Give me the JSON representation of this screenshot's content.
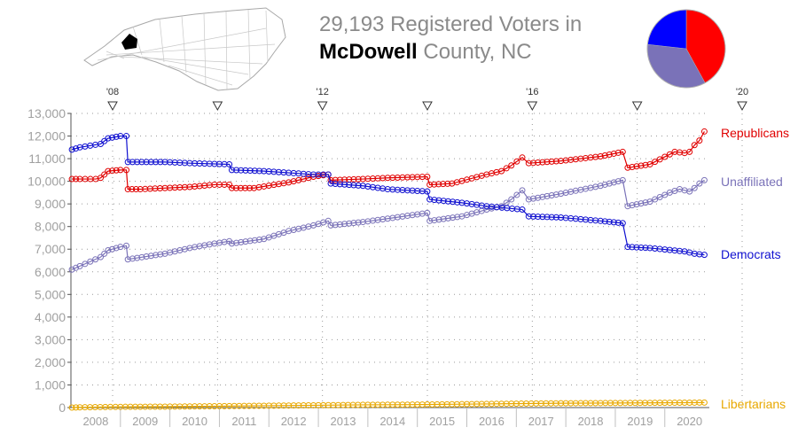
{
  "header": {
    "title_line1": "29,193 Registered Voters in",
    "county": "McDowell",
    "title_line2_rest": " County, NC"
  },
  "colors": {
    "republicans": "#e00000",
    "democrats": "#1010d0",
    "unaffiliated": "#7a72b8",
    "libertarians": "#e8a800",
    "grid": "#9a9a9a",
    "axis_text": "#a0a0a0"
  },
  "pie": {
    "slices": [
      {
        "name": "Republicans",
        "value": 12200,
        "color": "#ff0000"
      },
      {
        "name": "Unaffiliated",
        "value": 10100,
        "color": "#7a72b8"
      },
      {
        "name": "Democrats",
        "value": 6750,
        "color": "#0000ff"
      }
    ]
  },
  "map_icon": "north-carolina-county-map-icon",
  "chart_data": {
    "type": "line",
    "ylim": [
      0,
      13000
    ],
    "y_ticks": [
      0,
      1000,
      2000,
      3000,
      4000,
      5000,
      6000,
      7000,
      8000,
      9000,
      10000,
      11000,
      12000,
      13000
    ],
    "y_tick_labels": [
      "0",
      "1,000",
      "2,000",
      "3,000",
      "4,000",
      "5,000",
      "6,000",
      "7,000",
      "8,000",
      "9,000",
      "10,000",
      "11,000",
      "12,000",
      "13,000"
    ],
    "xlim": [
      2007.6,
      2020.5
    ],
    "x_year_labels": [
      "2008",
      "2009",
      "2010",
      "2011",
      "2012",
      "2013",
      "2014",
      "2015",
      "2016",
      "2017",
      "2018",
      "2019",
      "2020"
    ],
    "election_markers": [
      {
        "x": 2008.85,
        "label": "'08"
      },
      {
        "x": 2010.85,
        "label": ""
      },
      {
        "x": 2012.85,
        "label": "'12"
      },
      {
        "x": 2014.85,
        "label": ""
      },
      {
        "x": 2016.85,
        "label": "'16"
      },
      {
        "x": 2018.85,
        "label": ""
      },
      {
        "x": 2020.85,
        "label": "'20"
      }
    ],
    "series": [
      {
        "name": "Republicans",
        "color": "#e00000",
        "points": [
          [
            2007.62,
            10100
          ],
          [
            2007.78,
            10100
          ],
          [
            2008.1,
            10100
          ],
          [
            2008.2,
            10150
          ],
          [
            2008.35,
            10450
          ],
          [
            2008.6,
            10500
          ],
          [
            2008.72,
            10500
          ],
          [
            2008.75,
            9650
          ],
          [
            2009.0,
            9650
          ],
          [
            2010.0,
            9750
          ],
          [
            2010.5,
            9850
          ],
          [
            2010.8,
            9850
          ],
          [
            2010.85,
            9700
          ],
          [
            2011.3,
            9700
          ],
          [
            2012.0,
            9950
          ],
          [
            2012.5,
            10200
          ],
          [
            2012.8,
            10300
          ],
          [
            2012.85,
            10050
          ],
          [
            2013.5,
            10100
          ],
          [
            2014.0,
            10150
          ],
          [
            2014.8,
            10200
          ],
          [
            2014.85,
            9850
          ],
          [
            2015.3,
            9900
          ],
          [
            2016.0,
            10300
          ],
          [
            2016.3,
            10450
          ],
          [
            2016.5,
            10700
          ],
          [
            2016.72,
            11050
          ],
          [
            2016.85,
            10800
          ],
          [
            2017.5,
            10900
          ],
          [
            2018.3,
            11100
          ],
          [
            2018.75,
            11300
          ],
          [
            2018.85,
            10600
          ],
          [
            2019.3,
            10750
          ],
          [
            2019.8,
            11300
          ],
          [
            2020.0,
            11250
          ],
          [
            2020.1,
            11300
          ],
          [
            2020.2,
            11600
          ],
          [
            2020.3,
            11800
          ],
          [
            2020.4,
            12200
          ]
        ]
      },
      {
        "name": "Unaffiliated",
        "color": "#7a72b8",
        "points": [
          [
            2007.62,
            6100
          ],
          [
            2007.78,
            6250
          ],
          [
            2008.2,
            6650
          ],
          [
            2008.35,
            6950
          ],
          [
            2008.6,
            7100
          ],
          [
            2008.72,
            7150
          ],
          [
            2008.75,
            6550
          ],
          [
            2009.5,
            6800
          ],
          [
            2010.0,
            7050
          ],
          [
            2010.5,
            7250
          ],
          [
            2010.8,
            7350
          ],
          [
            2010.85,
            7250
          ],
          [
            2011.5,
            7450
          ],
          [
            2012.0,
            7800
          ],
          [
            2012.5,
            8050
          ],
          [
            2012.8,
            8250
          ],
          [
            2012.85,
            8050
          ],
          [
            2013.5,
            8200
          ],
          [
            2014.0,
            8350
          ],
          [
            2014.8,
            8600
          ],
          [
            2014.85,
            8250
          ],
          [
            2015.5,
            8450
          ],
          [
            2016.0,
            8750
          ],
          [
            2016.3,
            8900
          ],
          [
            2016.5,
            9200
          ],
          [
            2016.72,
            9600
          ],
          [
            2016.85,
            9200
          ],
          [
            2017.5,
            9450
          ],
          [
            2018.3,
            9800
          ],
          [
            2018.75,
            10050
          ],
          [
            2018.85,
            8900
          ],
          [
            2019.3,
            9100
          ],
          [
            2019.7,
            9500
          ],
          [
            2019.9,
            9650
          ],
          [
            2020.0,
            9600
          ],
          [
            2020.1,
            9550
          ],
          [
            2020.2,
            9700
          ],
          [
            2020.3,
            9900
          ],
          [
            2020.4,
            10050
          ]
        ]
      },
      {
        "name": "Democrats",
        "color": "#1010d0",
        "points": [
          [
            2007.62,
            11400
          ],
          [
            2007.78,
            11500
          ],
          [
            2008.2,
            11650
          ],
          [
            2008.35,
            11900
          ],
          [
            2008.6,
            12000
          ],
          [
            2008.72,
            12000
          ],
          [
            2008.75,
            10850
          ],
          [
            2009.5,
            10850
          ],
          [
            2010.0,
            10800
          ],
          [
            2010.8,
            10750
          ],
          [
            2010.85,
            10500
          ],
          [
            2011.5,
            10450
          ],
          [
            2012.5,
            10300
          ],
          [
            2012.8,
            10300
          ],
          [
            2012.85,
            9900
          ],
          [
            2013.5,
            9800
          ],
          [
            2014.0,
            9650
          ],
          [
            2014.8,
            9550
          ],
          [
            2014.85,
            9200
          ],
          [
            2015.5,
            9050
          ],
          [
            2016.0,
            8900
          ],
          [
            2016.72,
            8750
          ],
          [
            2016.85,
            8450
          ],
          [
            2017.5,
            8400
          ],
          [
            2018.3,
            8250
          ],
          [
            2018.75,
            8150
          ],
          [
            2018.85,
            7100
          ],
          [
            2019.3,
            7050
          ],
          [
            2020.0,
            6900
          ],
          [
            2020.2,
            6800
          ],
          [
            2020.4,
            6750
          ]
        ]
      },
      {
        "name": "Libertarians",
        "color": "#e8a800",
        "points": [
          [
            2007.62,
            0
          ],
          [
            2007.78,
            10
          ],
          [
            2008.5,
            30
          ],
          [
            2009.5,
            40
          ],
          [
            2010.5,
            60
          ],
          [
            2011.5,
            80
          ],
          [
            2012.5,
            100
          ],
          [
            2013.5,
            120
          ],
          [
            2014.5,
            130
          ],
          [
            2015.5,
            150
          ],
          [
            2016.5,
            170
          ],
          [
            2017.5,
            190
          ],
          [
            2018.5,
            200
          ],
          [
            2019.5,
            210
          ],
          [
            2020.4,
            220
          ]
        ]
      }
    ],
    "legend_labels": [
      "Republicans",
      "Unaffiliated",
      "Democrats",
      "Libertarians"
    ]
  }
}
